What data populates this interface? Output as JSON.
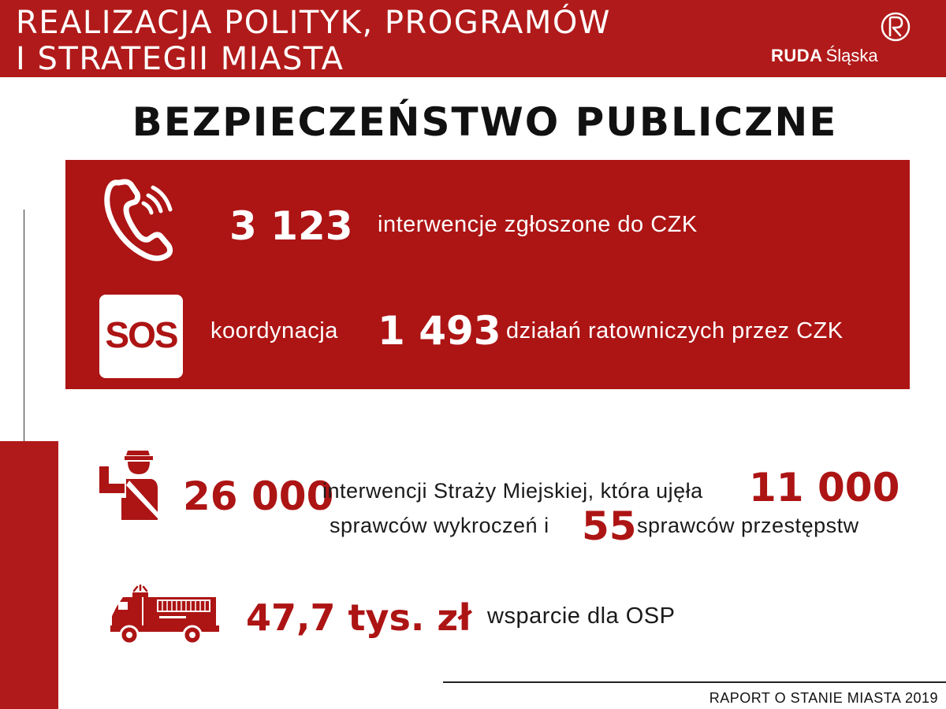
{
  "header": {
    "title_line1": "REALIZACJA POLITYK, PROGRAMÓW",
    "title_line2": "I STRATEGII MIASTA",
    "logo_bold": "RUDA",
    "logo_regular": "Śląska"
  },
  "page_title": "BEZPIECZEŃSTWO PUBLICZNE",
  "czk": {
    "interventions_value": "3 123",
    "interventions_label": "interwencje zgłoszone do CZK",
    "sos_label": "SOS",
    "coordination_prefix": "koordynacja",
    "coordination_value": "1 493",
    "coordination_suffix": "działań ratowniczych przez CZK"
  },
  "city_guard": {
    "interventions_value": "26 000",
    "text_part1": "interwencji Straży Miejskiej, która ujęła",
    "offenders_value": "11 000",
    "text_part2": "sprawców wykroczeń i",
    "criminals_value": "55",
    "text_part3": "sprawców przestępstw"
  },
  "osp": {
    "support_value": "47,7 tys. zł",
    "support_label": "wsparcie dla OSP"
  },
  "footer": {
    "text": "RAPORT O STANIE MIASTA 2019"
  },
  "colors": {
    "brand_red": "#ad1414",
    "header_red": "#b11a1a"
  },
  "icons": [
    "phone-ringing-icon",
    "sos-icon",
    "city-guard-icon",
    "fire-truck-icon",
    "ruda-logo-icon"
  ]
}
